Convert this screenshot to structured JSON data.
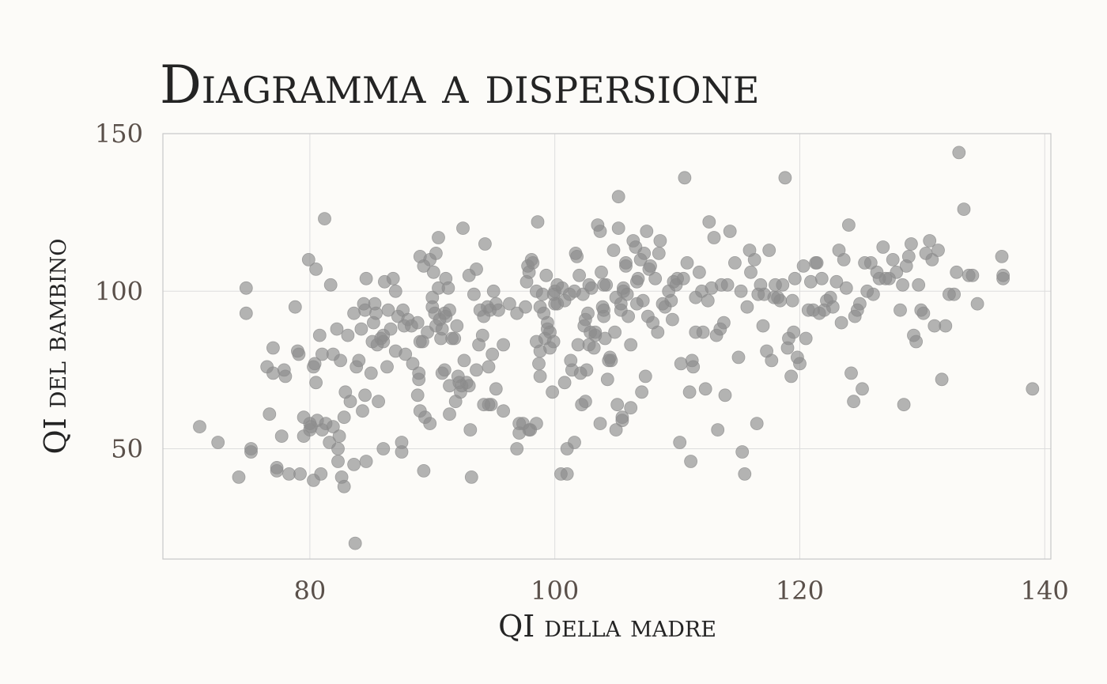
{
  "chart_data": {
    "type": "scatter",
    "title": "Diagramma a dispersione",
    "xlabel": "QI della madre",
    "ylabel": "QI del bambino",
    "xlim": [
      68,
      140.5
    ],
    "ylim": [
      15,
      150
    ],
    "x_ticks": [
      80,
      100,
      120,
      140
    ],
    "y_ticks": [
      50,
      100,
      150
    ],
    "x_tick_labels": [
      "80",
      "100",
      "120",
      "140"
    ],
    "y_tick_labels": [
      "50",
      "100",
      "150"
    ],
    "grid": true,
    "point_color": "#8c8c8c",
    "points": [
      [
        71.0,
        57
      ],
      [
        72.5,
        52
      ],
      [
        74.2,
        41
      ],
      [
        74.8,
        101
      ],
      [
        74.8,
        93
      ],
      [
        75.2,
        50
      ],
      [
        75.2,
        49
      ],
      [
        76.5,
        76
      ],
      [
        76.7,
        61
      ],
      [
        77.0,
        82
      ],
      [
        77.0,
        74
      ],
      [
        77.3,
        44
      ],
      [
        77.3,
        43
      ],
      [
        77.7,
        54
      ],
      [
        77.9,
        75
      ],
      [
        78.0,
        73
      ],
      [
        78.3,
        42
      ],
      [
        78.8,
        95
      ],
      [
        79.0,
        81
      ],
      [
        79.1,
        80
      ],
      [
        79.2,
        42
      ],
      [
        79.5,
        60
      ],
      [
        79.5,
        54
      ],
      [
        79.9,
        110
      ],
      [
        80.0,
        58
      ],
      [
        80.0,
        56
      ],
      [
        80.1,
        57
      ],
      [
        80.3,
        40
      ],
      [
        80.3,
        76
      ],
      [
        80.4,
        77
      ],
      [
        80.5,
        107
      ],
      [
        80.5,
        71
      ],
      [
        80.6,
        59
      ],
      [
        80.8,
        86
      ],
      [
        80.9,
        42
      ],
      [
        81.0,
        56
      ],
      [
        81.0,
        80
      ],
      [
        81.2,
        123
      ],
      [
        81.3,
        58
      ],
      [
        81.6,
        52
      ],
      [
        81.7,
        102
      ],
      [
        81.9,
        57
      ],
      [
        81.9,
        80
      ],
      [
        82.2,
        88
      ],
      [
        82.3,
        46
      ],
      [
        82.3,
        50
      ],
      [
        82.4,
        54
      ],
      [
        82.5,
        78
      ],
      [
        82.6,
        41
      ],
      [
        82.8,
        38
      ],
      [
        82.8,
        60
      ],
      [
        82.9,
        68
      ],
      [
        83.1,
        86
      ],
      [
        83.3,
        65
      ],
      [
        83.6,
        93
      ],
      [
        83.6,
        45
      ],
      [
        83.7,
        20
      ],
      [
        83.8,
        76
      ],
      [
        84.0,
        78
      ],
      [
        84.2,
        88
      ],
      [
        84.3,
        62
      ],
      [
        84.4,
        96
      ],
      [
        84.5,
        94
      ],
      [
        84.5,
        67
      ],
      [
        84.6,
        104
      ],
      [
        84.6,
        46
      ],
      [
        85.0,
        74
      ],
      [
        85.1,
        84
      ],
      [
        85.2,
        90
      ],
      [
        85.3,
        96
      ],
      [
        85.4,
        93
      ],
      [
        85.5,
        83
      ],
      [
        85.6,
        65
      ],
      [
        85.8,
        85
      ],
      [
        86.0,
        84
      ],
      [
        86.0,
        86
      ],
      [
        86.0,
        50
      ],
      [
        86.1,
        103
      ],
      [
        86.3,
        76
      ],
      [
        86.4,
        94
      ],
      [
        86.6,
        88
      ],
      [
        86.8,
        104
      ],
      [
        87.0,
        100
      ],
      [
        87.0,
        81
      ],
      [
        87.2,
        92
      ],
      [
        87.5,
        52
      ],
      [
        87.5,
        49
      ],
      [
        87.6,
        94
      ],
      [
        87.7,
        89
      ],
      [
        87.8,
        80
      ],
      [
        88.0,
        91
      ],
      [
        88.3,
        89
      ],
      [
        88.4,
        77
      ],
      [
        88.8,
        67
      ],
      [
        88.8,
        90
      ],
      [
        88.9,
        74
      ],
      [
        88.9,
        72
      ],
      [
        89.0,
        62
      ],
      [
        89.0,
        84
      ],
      [
        89.0,
        111
      ],
      [
        89.2,
        84
      ],
      [
        89.3,
        108
      ],
      [
        89.3,
        43
      ],
      [
        89.4,
        60
      ],
      [
        89.6,
        87
      ],
      [
        89.8,
        58
      ],
      [
        89.8,
        110
      ],
      [
        90.0,
        98
      ],
      [
        90.0,
        95
      ],
      [
        90.1,
        106
      ],
      [
        90.2,
        93
      ],
      [
        90.3,
        89
      ],
      [
        90.3,
        112
      ],
      [
        90.5,
        117
      ],
      [
        90.5,
        101
      ],
      [
        90.6,
        91
      ],
      [
        90.7,
        85
      ],
      [
        90.8,
        74
      ],
      [
        90.8,
        88
      ],
      [
        91.0,
        75
      ],
      [
        91.0,
        93
      ],
      [
        91.1,
        92
      ],
      [
        91.1,
        104
      ],
      [
        91.3,
        101
      ],
      [
        91.4,
        94
      ],
      [
        91.4,
        70
      ],
      [
        91.4,
        61
      ],
      [
        91.6,
        85
      ],
      [
        91.8,
        85
      ],
      [
        91.9,
        65
      ],
      [
        92.0,
        89
      ],
      [
        92.1,
        73
      ],
      [
        92.2,
        71
      ],
      [
        92.3,
        68
      ],
      [
        92.4,
        70
      ],
      [
        92.5,
        120
      ],
      [
        92.6,
        78
      ],
      [
        92.8,
        71
      ],
      [
        93.0,
        105
      ],
      [
        93.0,
        70
      ],
      [
        93.1,
        56
      ],
      [
        93.2,
        41
      ],
      [
        93.4,
        99
      ],
      [
        93.6,
        75
      ],
      [
        93.6,
        107
      ],
      [
        93.8,
        83
      ],
      [
        93.9,
        94
      ],
      [
        94.1,
        86
      ],
      [
        94.2,
        92
      ],
      [
        94.2,
        64
      ],
      [
        94.3,
        115
      ],
      [
        94.5,
        95
      ],
      [
        94.6,
        64
      ],
      [
        94.6,
        76
      ],
      [
        94.7,
        94
      ],
      [
        94.8,
        64
      ],
      [
        94.9,
        80
      ],
      [
        95.0,
        100
      ],
      [
        95.2,
        69
      ],
      [
        95.2,
        96
      ],
      [
        95.4,
        94
      ],
      [
        95.8,
        62
      ],
      [
        95.8,
        83
      ],
      [
        96.3,
        96
      ],
      [
        96.9,
        93
      ],
      [
        96.9,
        50
      ],
      [
        97.1,
        58
      ],
      [
        97.1,
        55
      ],
      [
        97.4,
        58
      ],
      [
        97.6,
        95
      ],
      [
        97.7,
        103
      ],
      [
        97.8,
        108
      ],
      [
        97.9,
        106
      ],
      [
        97.9,
        56
      ],
      [
        98.0,
        56
      ],
      [
        98.1,
        110
      ],
      [
        98.2,
        109
      ],
      [
        98.5,
        100
      ],
      [
        98.5,
        58
      ],
      [
        98.5,
        84
      ],
      [
        98.6,
        122
      ],
      [
        98.7,
        77
      ],
      [
        98.8,
        81
      ],
      [
        98.8,
        95
      ],
      [
        98.8,
        73
      ],
      [
        99.0,
        99
      ],
      [
        99.1,
        93
      ],
      [
        99.2,
        85
      ],
      [
        99.3,
        105
      ],
      [
        99.4,
        90
      ],
      [
        99.4,
        88
      ],
      [
        99.6,
        87
      ],
      [
        99.6,
        82
      ],
      [
        99.8,
        68
      ],
      [
        99.9,
        99
      ],
      [
        99.9,
        84
      ],
      [
        100.0,
        96
      ],
      [
        100.0,
        100
      ],
      [
        100.2,
        102
      ],
      [
        100.2,
        96
      ],
      [
        100.5,
        42
      ],
      [
        100.6,
        101
      ],
      [
        100.8,
        97
      ],
      [
        100.8,
        71
      ],
      [
        101.0,
        42
      ],
      [
        101.0,
        50
      ],
      [
        101.2,
        99
      ],
      [
        101.3,
        78
      ],
      [
        101.4,
        75
      ],
      [
        101.6,
        100
      ],
      [
        101.6,
        52
      ],
      [
        101.7,
        112
      ],
      [
        101.8,
        111
      ],
      [
        101.9,
        83
      ],
      [
        102.0,
        105
      ],
      [
        102.1,
        74
      ],
      [
        102.2,
        64
      ],
      [
        102.3,
        99
      ],
      [
        102.4,
        89
      ],
      [
        102.5,
        91
      ],
      [
        102.5,
        65
      ],
      [
        102.6,
        75
      ],
      [
        102.7,
        93
      ],
      [
        102.8,
        102
      ],
      [
        102.8,
        83
      ],
      [
        102.9,
        87
      ],
      [
        103.0,
        101
      ],
      [
        103.2,
        82
      ],
      [
        103.3,
        87
      ],
      [
        103.3,
        86
      ],
      [
        103.5,
        121
      ],
      [
        103.7,
        119
      ],
      [
        103.7,
        58
      ],
      [
        103.8,
        106
      ],
      [
        103.9,
        95
      ],
      [
        104.0,
        102
      ],
      [
        104.0,
        92
      ],
      [
        104.0,
        94
      ],
      [
        104.1,
        85
      ],
      [
        104.2,
        102
      ],
      [
        104.3,
        72
      ],
      [
        104.4,
        78
      ],
      [
        104.5,
        79
      ],
      [
        104.6,
        78
      ],
      [
        104.8,
        113
      ],
      [
        104.9,
        87
      ],
      [
        105.0,
        98
      ],
      [
        105.0,
        56
      ],
      [
        105.1,
        64
      ],
      [
        105.2,
        130
      ],
      [
        105.2,
        120
      ],
      [
        105.4,
        94
      ],
      [
        105.4,
        96
      ],
      [
        105.5,
        59
      ],
      [
        105.5,
        60
      ],
      [
        105.6,
        100
      ],
      [
        105.6,
        101
      ],
      [
        105.8,
        109
      ],
      [
        105.8,
        108
      ],
      [
        105.9,
        99
      ],
      [
        106.0,
        92
      ],
      [
        106.2,
        63
      ],
      [
        106.2,
        83
      ],
      [
        106.4,
        116
      ],
      [
        106.6,
        114
      ],
      [
        106.7,
        103
      ],
      [
        106.7,
        96
      ],
      [
        106.8,
        104
      ],
      [
        107.0,
        110
      ],
      [
        107.1,
        68
      ],
      [
        107.2,
        97
      ],
      [
        107.3,
        112
      ],
      [
        107.4,
        73
      ],
      [
        107.5,
        119
      ],
      [
        107.6,
        92
      ],
      [
        107.7,
        107
      ],
      [
        107.8,
        108
      ],
      [
        108.0,
        90
      ],
      [
        108.2,
        104
      ],
      [
        108.4,
        87
      ],
      [
        108.5,
        112
      ],
      [
        108.6,
        116
      ],
      [
        108.8,
        96
      ],
      [
        109.0,
        95
      ],
      [
        109.3,
        100
      ],
      [
        109.5,
        97
      ],
      [
        109.6,
        91
      ],
      [
        109.7,
        103
      ],
      [
        109.9,
        102
      ],
      [
        110.0,
        104
      ],
      [
        110.2,
        52
      ],
      [
        110.3,
        77
      ],
      [
        110.5,
        104
      ],
      [
        110.6,
        136
      ],
      [
        110.8,
        109
      ],
      [
        111.0,
        68
      ],
      [
        111.1,
        46
      ],
      [
        111.2,
        78
      ],
      [
        111.3,
        76
      ],
      [
        111.5,
        98
      ],
      [
        111.5,
        87
      ],
      [
        111.8,
        106
      ],
      [
        112.0,
        100
      ],
      [
        112.1,
        87
      ],
      [
        112.3,
        69
      ],
      [
        112.5,
        97
      ],
      [
        112.6,
        122
      ],
      [
        112.8,
        101
      ],
      [
        113.0,
        117
      ],
      [
        113.2,
        86
      ],
      [
        113.3,
        56
      ],
      [
        113.5,
        88
      ],
      [
        113.6,
        102
      ],
      [
        113.8,
        90
      ],
      [
        113.9,
        67
      ],
      [
        114.1,
        102
      ],
      [
        114.3,
        119
      ],
      [
        114.7,
        109
      ],
      [
        115.0,
        79
      ],
      [
        115.2,
        100
      ],
      [
        115.3,
        49
      ],
      [
        115.5,
        42
      ],
      [
        115.7,
        95
      ],
      [
        115.9,
        113
      ],
      [
        116.0,
        106
      ],
      [
        116.3,
        110
      ],
      [
        116.5,
        58
      ],
      [
        116.6,
        99
      ],
      [
        116.8,
        102
      ],
      [
        117.0,
        89
      ],
      [
        117.1,
        99
      ],
      [
        117.3,
        81
      ],
      [
        117.5,
        113
      ],
      [
        117.7,
        78
      ],
      [
        117.9,
        98
      ],
      [
        118.0,
        102
      ],
      [
        118.2,
        98
      ],
      [
        118.4,
        97
      ],
      [
        118.6,
        102
      ],
      [
        118.8,
        136
      ],
      [
        119.0,
        82
      ],
      [
        119.1,
        85
      ],
      [
        119.3,
        73
      ],
      [
        119.4,
        97
      ],
      [
        119.5,
        87
      ],
      [
        119.6,
        104
      ],
      [
        119.8,
        79
      ],
      [
        120.0,
        77
      ],
      [
        120.3,
        108
      ],
      [
        120.5,
        85
      ],
      [
        120.7,
        94
      ],
      [
        120.9,
        103
      ],
      [
        121.1,
        94
      ],
      [
        121.3,
        109
      ],
      [
        121.4,
        109
      ],
      [
        121.6,
        93
      ],
      [
        121.8,
        104
      ],
      [
        122.0,
        94
      ],
      [
        122.2,
        97
      ],
      [
        122.5,
        98
      ],
      [
        122.7,
        95
      ],
      [
        123.0,
        103
      ],
      [
        123.2,
        113
      ],
      [
        123.4,
        90
      ],
      [
        123.6,
        110
      ],
      [
        123.8,
        101
      ],
      [
        124.0,
        121
      ],
      [
        124.2,
        74
      ],
      [
        124.4,
        65
      ],
      [
        124.5,
        92
      ],
      [
        124.7,
        94
      ],
      [
        124.9,
        96
      ],
      [
        125.1,
        69
      ],
      [
        125.3,
        109
      ],
      [
        125.5,
        100
      ],
      [
        125.8,
        109
      ],
      [
        126.0,
        99
      ],
      [
        126.3,
        106
      ],
      [
        126.5,
        104
      ],
      [
        126.8,
        114
      ],
      [
        127.0,
        104
      ],
      [
        127.3,
        104
      ],
      [
        127.6,
        110
      ],
      [
        127.9,
        106
      ],
      [
        128.2,
        94
      ],
      [
        128.4,
        102
      ],
      [
        128.5,
        64
      ],
      [
        128.7,
        108
      ],
      [
        128.9,
        111
      ],
      [
        129.1,
        115
      ],
      [
        129.3,
        86
      ],
      [
        129.5,
        84
      ],
      [
        129.7,
        102
      ],
      [
        129.9,
        94
      ],
      [
        130.1,
        93
      ],
      [
        130.3,
        112
      ],
      [
        130.6,
        116
      ],
      [
        130.8,
        110
      ],
      [
        131.0,
        89
      ],
      [
        131.3,
        113
      ],
      [
        131.6,
        72
      ],
      [
        131.9,
        89
      ],
      [
        132.2,
        99
      ],
      [
        132.6,
        99
      ],
      [
        132.8,
        106
      ],
      [
        133.0,
        144
      ],
      [
        133.4,
        126
      ],
      [
        133.8,
        105
      ],
      [
        134.1,
        105
      ],
      [
        134.5,
        96
      ],
      [
        136.5,
        111
      ],
      [
        136.6,
        105
      ],
      [
        136.6,
        104
      ],
      [
        139.0,
        69
      ]
    ]
  }
}
